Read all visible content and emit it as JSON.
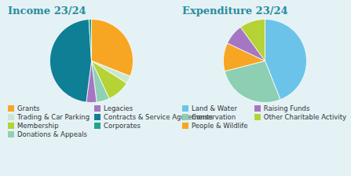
{
  "chart_data": [
    {
      "type": "pie",
      "title": "Income 23/24",
      "categories": [
        "Grants",
        "Trading & Car Parking",
        "Membership",
        "Donations & Appeals",
        "Legacies",
        "Contracts & Service Agreements",
        "Corporates"
      ],
      "values": [
        31,
        3,
        9,
        5,
        4,
        47,
        1
      ],
      "colors": [
        "#f6a623",
        "#c9e8cf",
        "#b5d334",
        "#8fd1b5",
        "#a577c2",
        "#0f7f95",
        "#24a389"
      ],
      "legend": "bottom"
    },
    {
      "type": "pie",
      "title": "Expenditure 23/24",
      "categories": [
        "Land & Water",
        "Conservation",
        "People & Wildlife",
        "Raising Funds",
        "Other Charitable Activity"
      ],
      "values": [
        44,
        27,
        11,
        8,
        10
      ],
      "colors": [
        "#6cc3ea",
        "#8ccfb3",
        "#f6a623",
        "#a577c2",
        "#b5d334"
      ],
      "legend": "bottom"
    }
  ]
}
